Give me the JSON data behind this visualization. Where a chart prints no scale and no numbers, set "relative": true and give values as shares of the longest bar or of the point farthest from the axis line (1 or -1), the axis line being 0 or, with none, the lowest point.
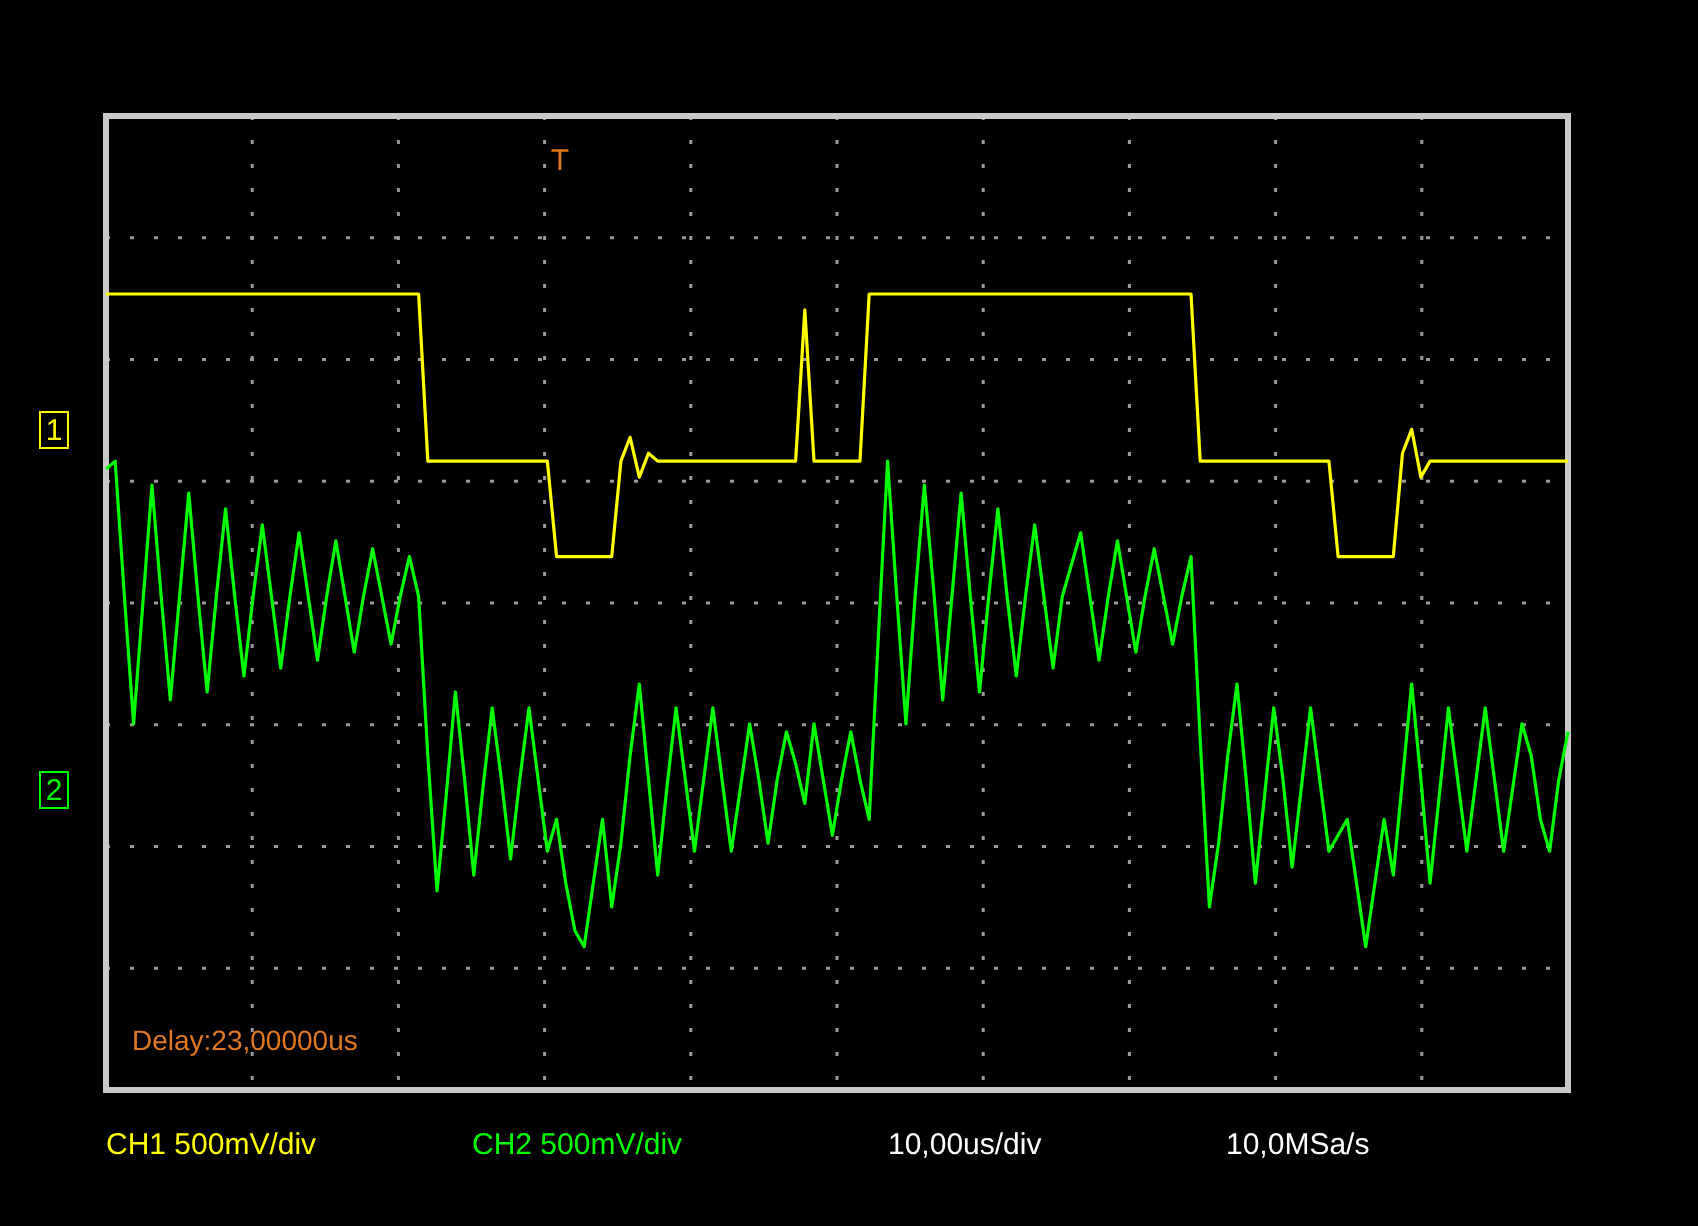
{
  "chart_data": {
    "type": "line",
    "relative": true,
    "legend": false,
    "grid": true,
    "line_style": "solid",
    "marker": "none",
    "categories": [
      null,
      null,
      null,
      null,
      null,
      null,
      null,
      null,
      null,
      null,
      null,
      null,
      null,
      null,
      null,
      null,
      null,
      null,
      null,
      null,
      null,
      null,
      null,
      null,
      null,
      null,
      null,
      null,
      null,
      null,
      null,
      null,
      null,
      null,
      null,
      null,
      null,
      null,
      null,
      null,
      null,
      null,
      null,
      null,
      null,
      null,
      null,
      null,
      null,
      null,
      null,
      null,
      null,
      null,
      null,
      null,
      null,
      null,
      null,
      null,
      null,
      null,
      null,
      null,
      null,
      null,
      null,
      null,
      null,
      null,
      null,
      null,
      null,
      null,
      null,
      null,
      null,
      null,
      null,
      null,
      null,
      null,
      null,
      null,
      null,
      null,
      null,
      null,
      null,
      null,
      null,
      null,
      null,
      null,
      null,
      null,
      null,
      null,
      null,
      null,
      null,
      null,
      null,
      null,
      null,
      null,
      null,
      null,
      null,
      null,
      null,
      null,
      null,
      null,
      null,
      null,
      null,
      null,
      null,
      null,
      null,
      null,
      null,
      null,
      null,
      null,
      null,
      null,
      null,
      null,
      null,
      null,
      null,
      null,
      null,
      null,
      null,
      null,
      null,
      null,
      null,
      null,
      null,
      null,
      null,
      null,
      null,
      null,
      null,
      null,
      null,
      null,
      null,
      null,
      null,
      null,
      null,
      null,
      null,
      null
    ],
    "series": [
      {
        "name": "1",
        "color": "#ffff00",
        "values": [
          1,
          1,
          1,
          1,
          1,
          1,
          1,
          1,
          1,
          1,
          1,
          1,
          1,
          1,
          1,
          1,
          1,
          1,
          1,
          1,
          1,
          1,
          1,
          1,
          1,
          1,
          1,
          1,
          1,
          1,
          1,
          1,
          1,
          1,
          1,
          0.79,
          0.79,
          0.79,
          0.79,
          0.79,
          0.79,
          0.79,
          0.79,
          0.79,
          0.79,
          0.79,
          0.79,
          0.79,
          0.79,
          0.67,
          0.67,
          0.67,
          0.67,
          0.67,
          0.67,
          0.67,
          0.79,
          0.82,
          0.77,
          0.8,
          0.79,
          0.79,
          0.79,
          0.79,
          0.79,
          0.79,
          0.79,
          0.79,
          0.79,
          0.79,
          0.79,
          0.79,
          0.79,
          0.79,
          0.79,
          0.79,
          0.98,
          0.79,
          0.79,
          0.79,
          0.79,
          0.79,
          0.79,
          1,
          1,
          1,
          1,
          1,
          1,
          1,
          1,
          1,
          1,
          1,
          1,
          1,
          1,
          1,
          1,
          1,
          1,
          1,
          1,
          1,
          1,
          1,
          1,
          1,
          1,
          1,
          1,
          1,
          1,
          1,
          1,
          1,
          1,
          1,
          1,
          0.79,
          0.79,
          0.79,
          0.79,
          0.79,
          0.79,
          0.79,
          0.79,
          0.79,
          0.79,
          0.79,
          0.79,
          0.79,
          0.79,
          0.79,
          0.67,
          0.67,
          0.67,
          0.67,
          0.67,
          0.67,
          0.67,
          0.8,
          0.83,
          0.77,
          0.79,
          0.79,
          0.79,
          0.79,
          0.79,
          0.79,
          0.79,
          0.79,
          0.79,
          0.79,
          0.79,
          0.79,
          0.79,
          0.79,
          0.79,
          0.79
        ]
      },
      {
        "name": "2",
        "color": "#00ff00",
        "values": [
          0.78,
          0.79,
          0.62,
          0.46,
          0.61,
          0.76,
          0.62,
          0.49,
          0.62,
          0.75,
          0.62,
          0.5,
          0.62,
          0.73,
          0.62,
          0.52,
          0.62,
          0.71,
          0.62,
          0.53,
          0.62,
          0.7,
          0.62,
          0.54,
          0.62,
          0.69,
          0.62,
          0.55,
          0.62,
          0.68,
          0.62,
          0.56,
          0.62,
          0.67,
          0.62,
          0.42,
          0.25,
          0.37,
          0.5,
          0.39,
          0.27,
          0.38,
          0.48,
          0.39,
          0.29,
          0.39,
          0.48,
          0.39,
          0.3,
          0.34,
          0.26,
          0.2,
          0.18,
          0.26,
          0.34,
          0.23,
          0.31,
          0.42,
          0.51,
          0.39,
          0.27,
          0.38,
          0.48,
          0.39,
          0.3,
          0.39,
          0.48,
          0.39,
          0.3,
          0.38,
          0.46,
          0.39,
          0.31,
          0.39,
          0.45,
          0.41,
          0.36,
          0.46,
          0.39,
          0.32,
          0.39,
          0.45,
          0.39,
          0.34,
          0.57,
          0.79,
          0.62,
          0.46,
          0.62,
          0.76,
          0.63,
          0.49,
          0.62,
          0.75,
          0.62,
          0.5,
          0.62,
          0.73,
          0.62,
          0.52,
          0.62,
          0.71,
          0.62,
          0.53,
          0.62,
          0.66,
          0.7,
          0.62,
          0.54,
          0.62,
          0.69,
          0.62,
          0.55,
          0.62,
          0.68,
          0.62,
          0.56,
          0.62,
          0.67,
          0.44,
          0.23,
          0.31,
          0.42,
          0.51,
          0.39,
          0.26,
          0.37,
          0.48,
          0.39,
          0.28,
          0.38,
          0.48,
          0.39,
          0.3,
          0.32,
          0.34,
          0.26,
          0.18,
          0.26,
          0.34,
          0.27,
          0.39,
          0.51,
          0.39,
          0.26,
          0.37,
          0.48,
          0.39,
          0.3,
          0.39,
          0.48,
          0.39,
          0.3,
          0.38,
          0.46,
          0.42,
          0.34,
          0.3,
          0.39,
          0.45
        ]
      }
    ],
    "annotations": [
      "Delay:23,00000us",
      "CH1 500mV/div",
      "CH2 500mV/div",
      "10,00us/div",
      "10,0MSa/s",
      "T"
    ]
  }
}
